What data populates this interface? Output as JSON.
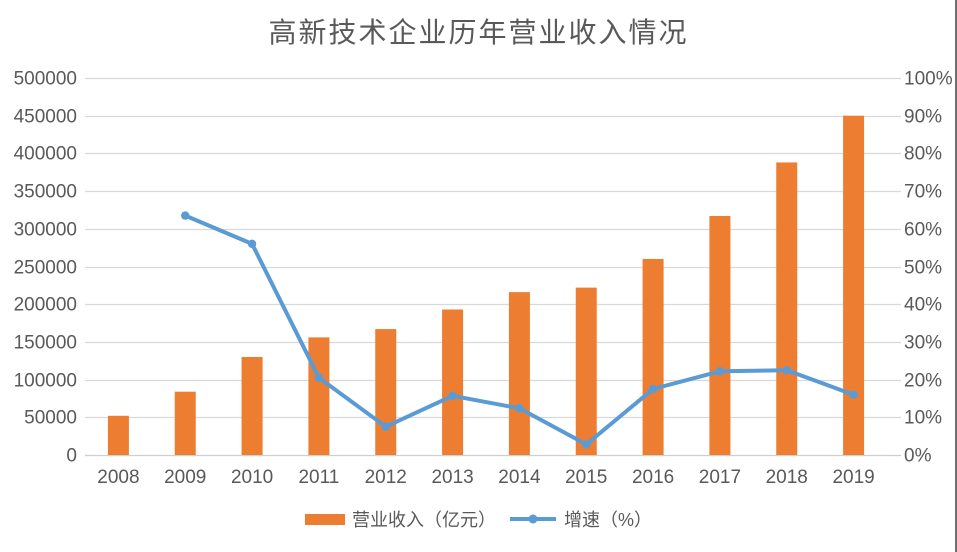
{
  "title": "高新技术企业历年营业收入情况",
  "colors": {
    "bar": "#ED7D31",
    "line": "#5B9BD5",
    "gridline": "#D9D9D9",
    "axis_line": "#CFCFCF",
    "text": "#595959",
    "window_border": "#6E6E6E"
  },
  "legend": {
    "revenue_label": "营业收入（亿元）",
    "growth_label": "增速（%）"
  },
  "chart_data": {
    "type": "bar",
    "subtype": "combo-bar-line-dual-axis",
    "title": "高新技术企业历年营业收入情况",
    "categories": [
      "2008",
      "2009",
      "2010",
      "2011",
      "2012",
      "2013",
      "2014",
      "2015",
      "2016",
      "2017",
      "2018",
      "2019"
    ],
    "series": [
      {
        "name": "营业收入（亿元）",
        "type": "bar",
        "axis": "left",
        "color": "#ED7D31",
        "values": [
          52000,
          84000,
          130000,
          156000,
          167000,
          193000,
          216000,
          222000,
          260000,
          317000,
          388000,
          450000
        ]
      },
      {
        "name": "增速（%）",
        "type": "line",
        "axis": "right",
        "color": "#5B9BD5",
        "values": [
          null,
          63.5,
          56,
          20.5,
          7.5,
          15.7,
          12.4,
          2.8,
          17.5,
          22.2,
          22.5,
          16
        ]
      }
    ],
    "xlabel": "",
    "ylabel_left": "",
    "ylabel_right": "",
    "left_axis": {
      "min": 0,
      "max": 500000,
      "step": 50000,
      "tick_labels": [
        "0",
        "50000",
        "100000",
        "150000",
        "200000",
        "250000",
        "300000",
        "350000",
        "400000",
        "450000",
        "500000"
      ]
    },
    "right_axis": {
      "min": 0,
      "max": 100,
      "step": 10,
      "tick_labels": [
        "0%",
        "10%",
        "20%",
        "30%",
        "40%",
        "50%",
        "60%",
        "70%",
        "80%",
        "90%",
        "100%"
      ]
    },
    "grid": true,
    "legend_position": "bottom"
  }
}
